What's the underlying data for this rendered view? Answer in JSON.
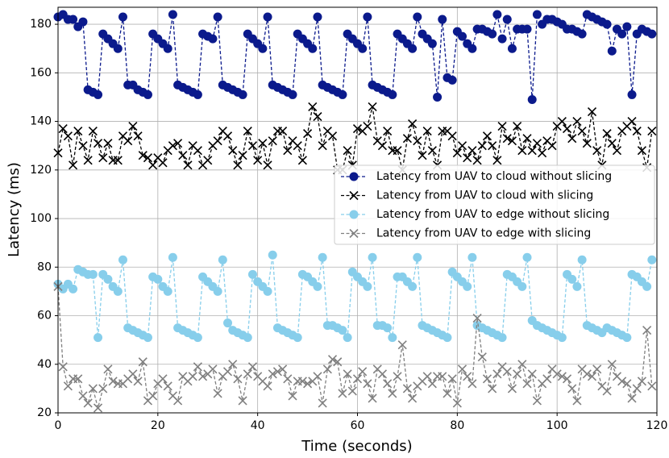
{
  "chart_data": {
    "type": "line",
    "xlabel": "Time (seconds)",
    "ylabel": "Latency (ms)",
    "x": [
      0,
      1,
      2,
      3,
      4,
      5,
      6,
      7,
      8,
      9,
      10,
      11,
      12,
      13,
      14,
      15,
      16,
      17,
      18,
      19,
      20,
      21,
      22,
      23,
      24,
      25,
      26,
      27,
      28,
      29,
      30,
      31,
      32,
      33,
      34,
      35,
      36,
      37,
      38,
      39,
      40,
      41,
      42,
      43,
      44,
      45,
      46,
      47,
      48,
      49,
      50,
      51,
      52,
      53,
      54,
      55,
      56,
      57,
      58,
      59,
      60,
      61,
      62,
      63,
      64,
      65,
      66,
      67,
      68,
      69,
      70,
      71,
      72,
      73,
      74,
      75,
      76,
      77,
      78,
      79,
      80,
      81,
      82,
      83,
      84,
      85,
      86,
      87,
      88,
      89,
      90,
      91,
      92,
      93,
      94,
      95,
      96,
      97,
      98,
      99,
      100,
      101,
      102,
      103,
      104,
      105,
      106,
      107,
      108,
      109,
      110,
      111,
      112,
      113,
      114,
      115,
      116,
      117,
      118,
      119
    ],
    "series": [
      {
        "name": "Latency from UAV to cloud without slicing",
        "color": "#0b1a8c",
        "marker": "circle",
        "values": [
          183,
          184,
          182,
          182,
          179,
          181,
          153,
          152,
          151,
          176,
          174,
          172,
          170,
          183,
          155,
          155,
          153,
          152,
          151,
          176,
          174,
          172,
          170,
          184,
          155,
          154,
          153,
          152,
          151,
          176,
          175,
          174,
          183,
          155,
          154,
          153,
          152,
          151,
          176,
          174,
          172,
          170,
          183,
          155,
          154,
          153,
          152,
          151,
          176,
          174,
          172,
          170,
          183,
          155,
          154,
          153,
          152,
          151,
          176,
          174,
          172,
          170,
          183,
          155,
          154,
          153,
          152,
          151,
          176,
          174,
          172,
          170,
          183,
          176,
          174,
          172,
          150,
          182,
          158,
          157,
          177,
          175,
          172,
          170,
          178,
          178,
          177,
          176,
          184,
          174,
          182,
          170,
          178,
          178,
          178,
          149,
          184,
          180,
          182,
          182,
          181,
          180,
          178,
          178,
          177,
          176,
          184,
          183,
          182,
          181,
          180,
          169,
          178,
          176,
          179,
          151,
          176,
          178,
          177,
          176
        ]
      },
      {
        "name": "Latency from UAV to cloud with slicing",
        "color": "#000000",
        "marker": "x",
        "values": [
          127,
          137,
          134,
          122,
          136,
          130,
          124,
          136,
          131,
          125,
          131,
          124,
          124,
          134,
          132,
          138,
          134,
          126,
          125,
          122,
          125,
          123,
          128,
          130,
          131,
          126,
          122,
          130,
          128,
          122,
          124,
          130,
          132,
          136,
          134,
          128,
          122,
          126,
          136,
          130,
          124,
          131,
          122,
          132,
          136,
          136,
          128,
          132,
          130,
          124,
          135,
          146,
          142,
          130,
          136,
          134,
          120,
          120,
          128,
          122,
          137,
          136,
          138,
          146,
          132,
          130,
          136,
          128,
          128,
          120,
          133,
          139,
          132,
          126,
          136,
          128,
          122,
          136,
          136,
          134,
          127,
          130,
          125,
          128,
          124,
          130,
          134,
          130,
          124,
          138,
          133,
          132,
          138,
          128,
          133,
          128,
          131,
          127,
          132,
          130,
          138,
          140,
          137,
          133,
          140,
          136,
          131,
          144,
          128,
          122,
          135,
          131,
          128,
          136,
          138,
          140,
          136,
          128,
          121,
          136
        ]
      },
      {
        "name": "Latency from UAV to edge without slicing",
        "color": "#87ceeb",
        "marker": "circle",
        "values": [
          73,
          71,
          73,
          71,
          79,
          78,
          77,
          77,
          51,
          77,
          75,
          72,
          70,
          83,
          55,
          54,
          53,
          52,
          51,
          76,
          75,
          72,
          70,
          84,
          55,
          54,
          53,
          52,
          51,
          76,
          74,
          72,
          70,
          83,
          57,
          54,
          53,
          52,
          51,
          77,
          74,
          72,
          70,
          85,
          55,
          54,
          53,
          52,
          51,
          77,
          76,
          74,
          72,
          84,
          56,
          56,
          55,
          54,
          51,
          78,
          76,
          74,
          72,
          84,
          56,
          56,
          55,
          51,
          76,
          76,
          74,
          72,
          84,
          56,
          55,
          54,
          53,
          52,
          51,
          78,
          76,
          74,
          72,
          84,
          56,
          55,
          54,
          53,
          52,
          51,
          77,
          76,
          74,
          72,
          84,
          58,
          56,
          55,
          54,
          53,
          52,
          51,
          77,
          75,
          72,
          83,
          56,
          55,
          54,
          53,
          55,
          54,
          53,
          52,
          51,
          77,
          76,
          74,
          72,
          83
        ]
      },
      {
        "name": "Latency from UAV to edge with slicing",
        "color": "#808080",
        "marker": "x",
        "values": [
          72,
          39,
          31,
          34,
          34,
          27,
          24,
          30,
          22,
          30,
          38,
          33,
          32,
          32,
          34,
          36,
          33,
          41,
          25,
          27,
          32,
          34,
          31,
          27,
          25,
          35,
          33,
          35,
          39,
          35,
          36,
          38,
          28,
          35,
          37,
          40,
          34,
          25,
          36,
          39,
          35,
          33,
          31,
          36,
          37,
          38,
          34,
          27,
          33,
          33,
          32,
          33,
          35,
          24,
          38,
          42,
          41,
          28,
          36,
          29,
          34,
          37,
          32,
          26,
          38,
          36,
          32,
          28,
          35,
          48,
          30,
          26,
          31,
          33,
          35,
          32,
          35,
          35,
          28,
          34,
          24,
          38,
          35,
          32,
          59,
          43,
          34,
          30,
          36,
          39,
          37,
          30,
          36,
          40,
          32,
          36,
          25,
          32,
          34,
          38,
          36,
          35,
          34,
          30,
          25,
          38,
          36,
          35,
          38,
          31,
          29,
          40,
          35,
          33,
          32,
          26,
          30,
          33,
          54,
          31
        ]
      }
    ],
    "xlim": [
      0,
      120
    ],
    "xticks": [
      0,
      20,
      40,
      60,
      80,
      100,
      120
    ],
    "ylim": [
      20,
      187
    ],
    "yticks": [
      20,
      40,
      60,
      80,
      100,
      120,
      140,
      160,
      180
    ],
    "grid": true,
    "legend": "center right"
  }
}
